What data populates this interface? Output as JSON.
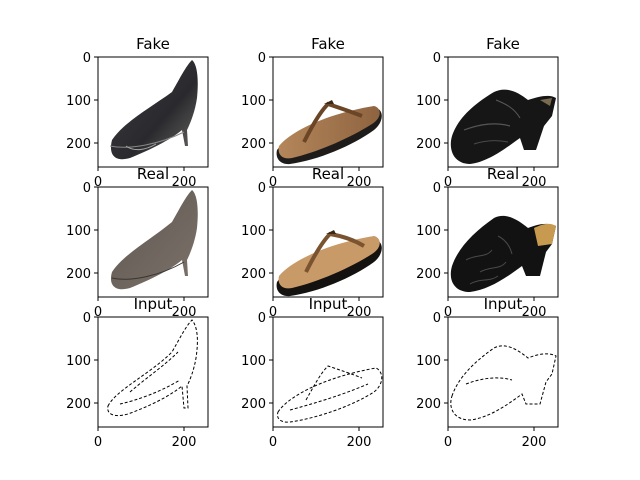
{
  "figure": {
    "panels": [
      {
        "title": "Fake",
        "row": "fake",
        "subject": "black-high-heel-pump",
        "x_ticks": [
          "0",
          "200"
        ],
        "y_ticks": [
          "0",
          "100",
          "200"
        ]
      },
      {
        "title": "Fake",
        "row": "fake",
        "subject": "brown-flip-flop-sandal",
        "x_ticks": [
          "0",
          "200"
        ],
        "y_ticks": [
          "0",
          "100",
          "200"
        ]
      },
      {
        "title": "Fake",
        "row": "fake",
        "subject": "black-leather-clog",
        "x_ticks": [
          "0",
          "200"
        ],
        "y_ticks": [
          "0",
          "100",
          "200"
        ]
      },
      {
        "title": "Real",
        "row": "real",
        "subject": "taupe-suede-pump",
        "x_ticks": [
          "0",
          "200"
        ],
        "y_ticks": [
          "0",
          "100",
          "200"
        ]
      },
      {
        "title": "Real",
        "row": "real",
        "subject": "tan-leather-flip-flop",
        "x_ticks": [
          "0",
          "200"
        ],
        "y_ticks": [
          "0",
          "100",
          "200"
        ]
      },
      {
        "title": "Real",
        "row": "real",
        "subject": "black-embossed-clog",
        "x_ticks": [
          "0",
          "200"
        ],
        "y_ticks": [
          "0",
          "100",
          "200"
        ]
      },
      {
        "title": "Input",
        "row": "input",
        "subject": "pump-edge-sketch",
        "x_ticks": [
          "0",
          "200"
        ],
        "y_ticks": [
          "0",
          "100",
          "200"
        ]
      },
      {
        "title": "Input",
        "row": "input",
        "subject": "sandal-edge-sketch",
        "x_ticks": [
          "0",
          "200"
        ],
        "y_ticks": [
          "0",
          "100",
          "200"
        ]
      },
      {
        "title": "Input",
        "row": "input",
        "subject": "clog-edge-sketch",
        "x_ticks": [
          "0",
          "200"
        ],
        "y_ticks": [
          "0",
          "100",
          "200"
        ]
      }
    ]
  }
}
